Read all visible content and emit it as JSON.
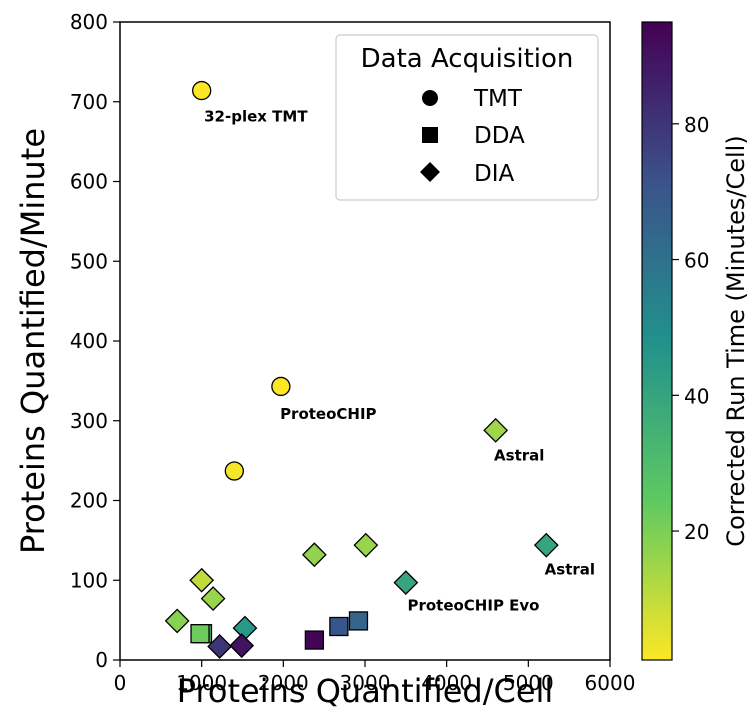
{
  "chart_data": {
    "type": "scatter",
    "title": "",
    "xlabel": "Proteins Quantified/Cell",
    "ylabel": "Proteins Quantified/Minute",
    "xlim": [
      0,
      6000
    ],
    "ylim": [
      0,
      800
    ],
    "xticks": [
      "0",
      "1000",
      "2000",
      "3000",
      "4000",
      "5000",
      "6000"
    ],
    "yticks": [
      "0",
      "100",
      "200",
      "300",
      "400",
      "500",
      "600",
      "700",
      "800"
    ],
    "grid": false,
    "colorbar": {
      "label": "Corrected Run Time (Minutes/Cell)",
      "colormap": "viridis-reversed",
      "range": [
        1,
        95
      ],
      "ticks": [
        "20",
        "40",
        "60",
        "80"
      ]
    },
    "legend": {
      "title": "Data Acquisition",
      "placement": "top-right",
      "entries": [
        {
          "label": "TMT",
          "marker": "circle"
        },
        {
          "label": "DDA",
          "marker": "square"
        },
        {
          "label": "DIA",
          "marker": "diamond"
        }
      ]
    },
    "points": [
      {
        "x": 1000,
        "y": 714,
        "marker": "circle",
        "run_time": 1
      },
      {
        "x": 1970,
        "y": 343,
        "marker": "circle",
        "run_time": 1
      },
      {
        "x": 1400,
        "y": 237,
        "marker": "circle",
        "run_time": 2
      },
      {
        "x": 4600,
        "y": 288,
        "marker": "diamond",
        "run_time": 15
      },
      {
        "x": 5220,
        "y": 144,
        "marker": "diamond",
        "run_time": 40
      },
      {
        "x": 3010,
        "y": 144,
        "marker": "diamond",
        "run_time": 16
      },
      {
        "x": 3500,
        "y": 97,
        "marker": "diamond",
        "run_time": 40
      },
      {
        "x": 2380,
        "y": 132,
        "marker": "diamond",
        "run_time": 17
      },
      {
        "x": 1000,
        "y": 100,
        "marker": "diamond",
        "run_time": 10
      },
      {
        "x": 1140,
        "y": 77,
        "marker": "diamond",
        "run_time": 16
      },
      {
        "x": 700,
        "y": 49,
        "marker": "diamond",
        "run_time": 18
      },
      {
        "x": 1530,
        "y": 40,
        "marker": "diamond",
        "run_time": 45
      },
      {
        "x": 1220,
        "y": 17,
        "marker": "diamond",
        "run_time": 80
      },
      {
        "x": 1490,
        "y": 18,
        "marker": "diamond",
        "run_time": 90
      },
      {
        "x": 1010,
        "y": 33,
        "marker": "square",
        "run_time": 30
      },
      {
        "x": 980,
        "y": 33,
        "marker": "square",
        "run_time": 22
      },
      {
        "x": 2380,
        "y": 25,
        "marker": "square",
        "run_time": 94
      },
      {
        "x": 2680,
        "y": 42,
        "marker": "square",
        "run_time": 70
      },
      {
        "x": 2920,
        "y": 49,
        "marker": "square",
        "run_time": 65
      }
    ],
    "annotations": [
      {
        "text": "32-plex TMT",
        "x": 1030,
        "y": 675
      },
      {
        "text": "ProteoCHIP",
        "x": 1960,
        "y": 302
      },
      {
        "text": "Astral",
        "x": 4580,
        "y": 250
      },
      {
        "text": "Astral",
        "x": 5200,
        "y": 107
      },
      {
        "text": "ProteoCHIP Evo",
        "x": 3520,
        "y": 62
      }
    ]
  }
}
